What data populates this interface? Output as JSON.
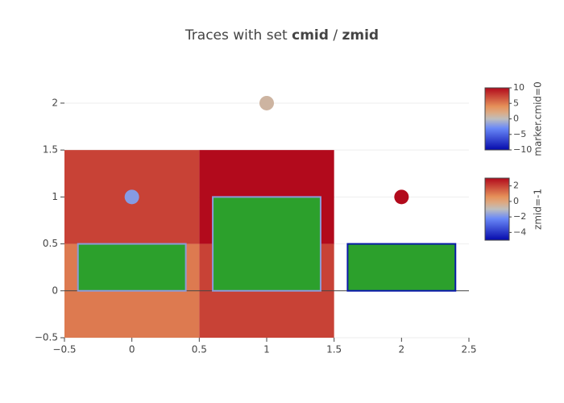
{
  "chart_data": {
    "type": "composite",
    "title_parts": [
      "Traces with set ",
      "cmid",
      " / ",
      "zmid"
    ],
    "xlim": [
      -0.5,
      2.5
    ],
    "ylim": [
      -0.5,
      2.24
    ],
    "xticks": [
      {
        "value": -0.5,
        "label": "−0.5"
      },
      0,
      0.5,
      1,
      1.5,
      2,
      2.5
    ],
    "yticks": [
      {
        "value": -0.5,
        "label": "−0.5"
      },
      0,
      0.5,
      1,
      1.5,
      2
    ],
    "grid": true,
    "colorscale": [
      [
        0,
        "rgb(5,10,172)"
      ],
      [
        0.35,
        "rgb(106,137,247)"
      ],
      [
        0.5,
        "rgb(190,190,190)"
      ],
      [
        0.6,
        "rgb(220,170,132)"
      ],
      [
        0.7,
        "rgb(230,145,90)"
      ],
      [
        1,
        "rgb(178,10,28)"
      ]
    ],
    "traces": [
      {
        "type": "heatmap",
        "x": [
          0,
          1
        ],
        "y": [
          0,
          1
        ],
        "z": [
          [
            1,
            2
          ],
          [
            2,
            3
          ]
        ],
        "zmid": -1,
        "colorbar": {
          "title": "zmid=-1",
          "range": [
            -5,
            3
          ],
          "ticks": [
            2,
            0,
            {
              "value": -2,
              "label": "−2"
            },
            {
              "value": -4,
              "label": "−4"
            }
          ]
        }
      },
      {
        "type": "bar",
        "x": [
          0,
          1,
          2
        ],
        "values": [
          0.5,
          1,
          0.5
        ],
        "color": "#2ca02c",
        "line_colors": [
          "#8c9bd8",
          "#8c9bd8",
          "#0a1aa8"
        ]
      },
      {
        "type": "scatter",
        "x": [
          0,
          1,
          2
        ],
        "y": [
          1,
          2,
          1
        ],
        "marker_values": [
          -2,
          1,
          10
        ],
        "cmid": 0,
        "colorbar": {
          "title": "marker.cmid=0",
          "range": [
            -10,
            10
          ],
          "ticks": [
            10,
            5,
            0,
            {
              "value": -5,
              "label": "−5"
            },
            {
              "value": -10,
              "label": "−10"
            }
          ]
        }
      }
    ]
  }
}
